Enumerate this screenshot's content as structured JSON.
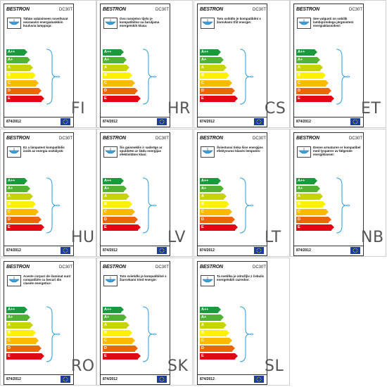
{
  "brand": "BESTRON",
  "model": "DC30T",
  "regulation": "874/2012",
  "energy_classes": [
    {
      "label": "A++",
      "color": "#1a9a3c"
    },
    {
      "label": "A+",
      "color": "#52b234"
    },
    {
      "label": "A",
      "color": "#c8d400"
    },
    {
      "label": "B",
      "color": "#fff200"
    },
    {
      "label": "C",
      "color": "#fbb900"
    },
    {
      "label": "D",
      "color": "#ec6608"
    },
    {
      "label": "E",
      "color": "#e30613"
    }
  ],
  "labels": [
    {
      "lang": "FI",
      "text": "Tähän valaisimeen soveltuvat seuraaviin energialuokkiin kuuluvia lamppuja:"
    },
    {
      "lang": "HR",
      "text": "Ovo rasvjetno tijelo je kompatibilno sa žaruljama energetskih klasa:"
    },
    {
      "lang": "CS",
      "text": "Toto svítidlo je kompatibilní s žárovkami tříd energie:"
    },
    {
      "lang": "ET",
      "text": "See valgusti on sobilik lambipirnidega järgmistest energiaklassidest:"
    },
    {
      "lang": "HU",
      "text": "Ez a lámpatest kompatibilis izzók az energia osztályok:"
    },
    {
      "lang": "LV",
      "text": "Šis gaismeklis ir saderīgs ar spuldzēm ar šādu energijas efektivitātes klasi:"
    },
    {
      "lang": "LT",
      "text": "Šviestuvui tinka šios energijos efektyvumo klasės lemputės:"
    },
    {
      "lang": "NB",
      "text": "Denne armaturen er kompatibel med lyspærer av følgende energiklasser:"
    },
    {
      "lang": "RO",
      "text": "Aceste corpuri de iluminat sunt compatibile cu becuri din clasele energetice:"
    },
    {
      "lang": "SK",
      "text": "Toto svietidlo je kompatibilné s žiarovkami tried energie:"
    },
    {
      "lang": "SL",
      "text": "Ta svetilka je združljiv z čebulic energetskih razredov:"
    }
  ]
}
